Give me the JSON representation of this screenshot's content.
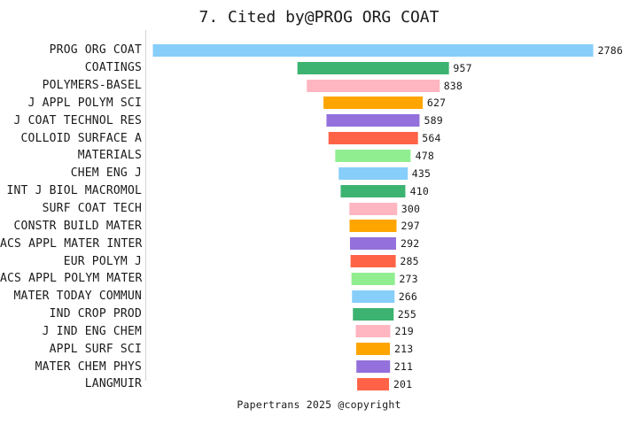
{
  "chart_data": {
    "type": "bar",
    "orientation": "horizontal",
    "style": "centered-funnel",
    "title": "7. Cited by@PROG ORG COAT",
    "annotation": "Papertrans 2025 @copyright",
    "categories": [
      "PROG ORG COAT",
      "COATINGS",
      "POLYMERS-BASEL",
      "J APPL POLYM SCI",
      "J COAT TECHNOL RES",
      "COLLOID SURFACE A",
      "MATERIALS",
      "CHEM ENG J",
      "INT J BIOL MACROMOL",
      "SURF COAT TECH",
      "CONSTR BUILD MATER",
      "ACS APPL MATER INTER",
      "EUR POLYM J",
      "ACS APPL POLYM MATER",
      "MATER TODAY COMMUN",
      "IND CROP PROD",
      "J IND ENG CHEM",
      "APPL SURF SCI",
      "MATER CHEM PHYS",
      "LANGMUIR"
    ],
    "values": [
      2786,
      957,
      838,
      627,
      589,
      564,
      478,
      435,
      410,
      300,
      297,
      292,
      285,
      273,
      266,
      255,
      219,
      213,
      211,
      201
    ],
    "value_labels_shown": true,
    "legend": false,
    "grid": false,
    "xlabel": "",
    "ylabel": "",
    "xlim": [
      0,
      2786
    ],
    "colors_cycle": [
      "#87CEFA",
      "#3CB371",
      "#FFB6C1",
      "#FFA500",
      "#9370DB",
      "#FF6347",
      "#90EE90"
    ],
    "spine_color": "#d3d3d3",
    "text_color": "#1a1a1a",
    "background_color": "#ffffff"
  }
}
